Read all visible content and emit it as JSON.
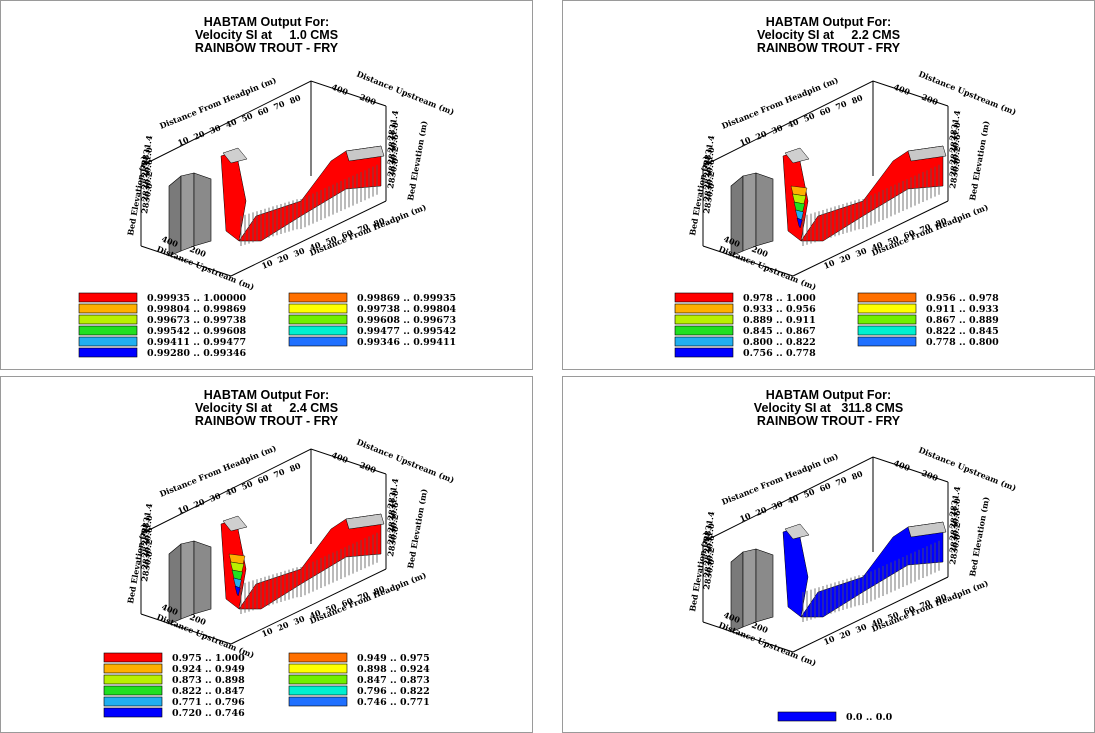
{
  "panels": [
    {
      "title": "HABTAM Output For:",
      "subtitle": "Velocity SI at     1.0 CMS",
      "species": "RAINBOW TROUT - FRY",
      "axes": {
        "x_top": "Distance From Headpin (m)",
        "x_bottom": "Distance From Headpin (m)",
        "y_top": "Distance Upstream (m)",
        "y_bottom": "Distance Upstream (m)",
        "z_left": "Bed Elevation (m)",
        "z_right": "Bed Elevation (m)",
        "x_ticks": [
          "10",
          "20",
          "30",
          "40",
          "50",
          "60",
          "70",
          "80"
        ],
        "y_ticks": [
          "400",
          "200"
        ],
        "z_ticks": [
          "2831.4",
          "2831.0",
          "2830.6",
          "2830.2",
          "2830.0"
        ]
      },
      "legend_left": [
        {
          "label": "0.99935 .. 1.00000",
          "color": "#ff0000"
        },
        {
          "label": "0.99804 .. 0.99869",
          "color": "#ffb000"
        },
        {
          "label": "0.99673 .. 0.99738",
          "color": "#b8f000"
        },
        {
          "label": "0.99542 .. 0.99608",
          "color": "#20e020"
        },
        {
          "label": "0.99411 .. 0.99477",
          "color": "#20b0f0"
        },
        {
          "label": "0.99280 .. 0.99346",
          "color": "#0000ff"
        }
      ],
      "legend_right": [
        {
          "label": "0.99869 .. 0.99935",
          "color": "#ff7000"
        },
        {
          "label": "0.99738 .. 0.99804",
          "color": "#ffff00"
        },
        {
          "label": "0.99608 .. 0.99673",
          "color": "#70f000"
        },
        {
          "label": "0.99477 .. 0.99542",
          "color": "#00f0d0"
        },
        {
          "label": "0.99346 .. 0.99411",
          "color": "#2070ff"
        }
      ]
    },
    {
      "title": "HABTAM Output For:",
      "subtitle": "Velocity SI at     2.2 CMS",
      "species": "RAINBOW TROUT - FRY",
      "axes": {
        "x_top": "Distance From Headpin (m)",
        "x_bottom": "Distance From Headpin (m)",
        "y_top": "Distance Upstream (m)",
        "y_bottom": "Distance Upstream (m)",
        "z_left": "Bed Elevation (m)",
        "z_right": "Bed Elevation (m)",
        "x_ticks": [
          "10",
          "20",
          "30",
          "40",
          "50",
          "60",
          "70",
          "80"
        ],
        "y_ticks": [
          "400",
          "200"
        ],
        "z_ticks": [
          "2831.4",
          "2831.0",
          "2830.6",
          "2830.2",
          "2830.0"
        ]
      },
      "legend_left": [
        {
          "label": "0.978 .. 1.000",
          "color": "#ff0000"
        },
        {
          "label": "0.933 .. 0.956",
          "color": "#ffb000"
        },
        {
          "label": "0.889 .. 0.911",
          "color": "#b8f000"
        },
        {
          "label": "0.845 .. 0.867",
          "color": "#20e020"
        },
        {
          "label": "0.800 .. 0.822",
          "color": "#20b0f0"
        },
        {
          "label": "0.756 .. 0.778",
          "color": "#0000ff"
        }
      ],
      "legend_right": [
        {
          "label": "0.956 .. 0.978",
          "color": "#ff7000"
        },
        {
          "label": "0.911 .. 0.933",
          "color": "#ffff00"
        },
        {
          "label": "0.867 .. 0.889",
          "color": "#70f000"
        },
        {
          "label": "0.822 .. 0.845",
          "color": "#00f0d0"
        },
        {
          "label": "0.778 .. 0.800",
          "color": "#2070ff"
        }
      ]
    },
    {
      "title": "HABTAM Output For:",
      "subtitle": "Velocity SI at     2.4 CMS",
      "species": "RAINBOW TROUT - FRY",
      "axes": {
        "x_top": "Distance From Headpin (m)",
        "x_bottom": "Distance From Headpin (m)",
        "y_top": "Distance Upstream (m)",
        "y_bottom": "Distance Upstream (m)",
        "z_left": "Bed Elevation (m)",
        "z_right": "Bed Elevation (m)",
        "x_ticks": [
          "10",
          "20",
          "30",
          "40",
          "50",
          "60",
          "70",
          "80"
        ],
        "y_ticks": [
          "400",
          "200"
        ],
        "z_ticks": [
          "2831.4",
          "2831.0",
          "2830.6",
          "2830.2",
          "2830.0"
        ]
      },
      "legend_left": [
        {
          "label": "0.975 .. 1.000",
          "color": "#ff0000"
        },
        {
          "label": "0.924 .. 0.949",
          "color": "#ffb000"
        },
        {
          "label": "0.873 .. 0.898",
          "color": "#b8f000"
        },
        {
          "label": "0.822 .. 0.847",
          "color": "#20e020"
        },
        {
          "label": "0.771 .. 0.796",
          "color": "#20b0f0"
        },
        {
          "label": "0.720 .. 0.746",
          "color": "#0000ff"
        }
      ],
      "legend_right": [
        {
          "label": "0.949 .. 0.975",
          "color": "#ff7000"
        },
        {
          "label": "0.898 .. 0.924",
          "color": "#ffff00"
        },
        {
          "label": "0.847 .. 0.873",
          "color": "#70f000"
        },
        {
          "label": "0.796 .. 0.822",
          "color": "#00f0d0"
        },
        {
          "label": "0.746 .. 0.771",
          "color": "#2070ff"
        }
      ]
    },
    {
      "title": "HABTAM Output For:",
      "subtitle": "Velocity SI at   311.8 CMS",
      "species": "RAINBOW TROUT - FRY",
      "axes": {
        "x_top": "Distance From Headpin (m)",
        "x_bottom": "Distance From Headpin (m)",
        "y_top": "Distance Upstream (m)",
        "y_bottom": "Distance Upstream (m)",
        "z_left": "Bed Elevation (m)",
        "z_right": "Bed Elevation (m)",
        "x_ticks": [
          "10",
          "20",
          "30",
          "40",
          "50",
          "60",
          "70",
          "80"
        ],
        "y_ticks": [
          "400",
          "200"
        ],
        "z_ticks": [
          "2831.4",
          "2831.0",
          "2830.6",
          "2830.2",
          "2830.0"
        ]
      },
      "legend_left": [
        {
          "label": "0.0 .. 0.0",
          "color": "#0000ff"
        }
      ],
      "legend_right": []
    }
  ],
  "chart_data": [
    {
      "type": "surface3d",
      "title": "HABTAM Output For: Velocity SI at 1.0 CMS RAINBOW TROUT - FRY",
      "xlabel": "Distance From Headpin (m)",
      "ylabel": "Distance Upstream (m)",
      "zlabel": "Bed Elevation (m)",
      "x_ticks": [
        10,
        20,
        30,
        40,
        50,
        60,
        70,
        80
      ],
      "y_ticks": [
        400,
        200
      ],
      "z_ticks": [
        2831.4,
        2831.0,
        2830.6,
        2830.2,
        2830.0
      ],
      "legend": [
        "0.99935 .. 1.00000",
        "0.99869 .. 0.99935",
        "0.99804 .. 0.99869",
        "0.99738 .. 0.99804",
        "0.99673 .. 0.99738",
        "0.99608 .. 0.99673",
        "0.99542 .. 0.99608",
        "0.99477 .. 0.99542",
        "0.99411 .. 0.99477",
        "0.99346 .. 0.99411",
        "0.99280 .. 0.99346"
      ],
      "dominant_class": "0.99935 .. 1.00000"
    },
    {
      "type": "surface3d",
      "title": "HABTAM Output For: Velocity SI at 2.2 CMS RAINBOW TROUT - FRY",
      "xlabel": "Distance From Headpin (m)",
      "ylabel": "Distance Upstream (m)",
      "zlabel": "Bed Elevation (m)",
      "x_ticks": [
        10,
        20,
        30,
        40,
        50,
        60,
        70,
        80
      ],
      "y_ticks": [
        400,
        200
      ],
      "z_ticks": [
        2831.4,
        2831.0,
        2830.6,
        2830.2,
        2830.0
      ],
      "legend": [
        "0.978 .. 1.000",
        "0.956 .. 0.978",
        "0.933 .. 0.956",
        "0.911 .. 0.933",
        "0.889 .. 0.911",
        "0.867 .. 0.889",
        "0.845 .. 0.867",
        "0.822 .. 0.845",
        "0.800 .. 0.822",
        "0.778 .. 0.800",
        "0.756 .. 0.778"
      ],
      "dominant_class": "0.978 .. 1.000"
    },
    {
      "type": "surface3d",
      "title": "HABTAM Output For: Velocity SI at 2.4 CMS RAINBOW TROUT - FRY",
      "xlabel": "Distance From Headpin (m)",
      "ylabel": "Distance Upstream (m)",
      "zlabel": "Bed Elevation (m)",
      "x_ticks": [
        10,
        20,
        30,
        40,
        50,
        60,
        70,
        80
      ],
      "y_ticks": [
        400,
        200
      ],
      "z_ticks": [
        2831.4,
        2831.0,
        2830.6,
        2830.2,
        2830.0
      ],
      "legend": [
        "0.975 .. 1.000",
        "0.949 .. 0.975",
        "0.924 .. 0.949",
        "0.898 .. 0.924",
        "0.873 .. 0.898",
        "0.847 .. 0.873",
        "0.822 .. 0.847",
        "0.796 .. 0.822",
        "0.771 .. 0.796",
        "0.746 .. 0.771",
        "0.720 .. 0.746"
      ],
      "dominant_class": "0.975 .. 1.000"
    },
    {
      "type": "surface3d",
      "title": "HABTAM Output For: Velocity SI at 311.8 CMS RAINBOW TROUT - FRY",
      "xlabel": "Distance From Headpin (m)",
      "ylabel": "Distance Upstream (m)",
      "zlabel": "Bed Elevation (m)",
      "x_ticks": [
        10,
        20,
        30,
        40,
        50,
        60,
        70,
        80
      ],
      "y_ticks": [
        400,
        200
      ],
      "z_ticks": [
        2831.4,
        2831.0,
        2830.6,
        2830.2,
        2830.0
      ],
      "legend": [
        "0.0 .. 0.0"
      ],
      "dominant_class": "0.0 .. 0.0"
    }
  ]
}
